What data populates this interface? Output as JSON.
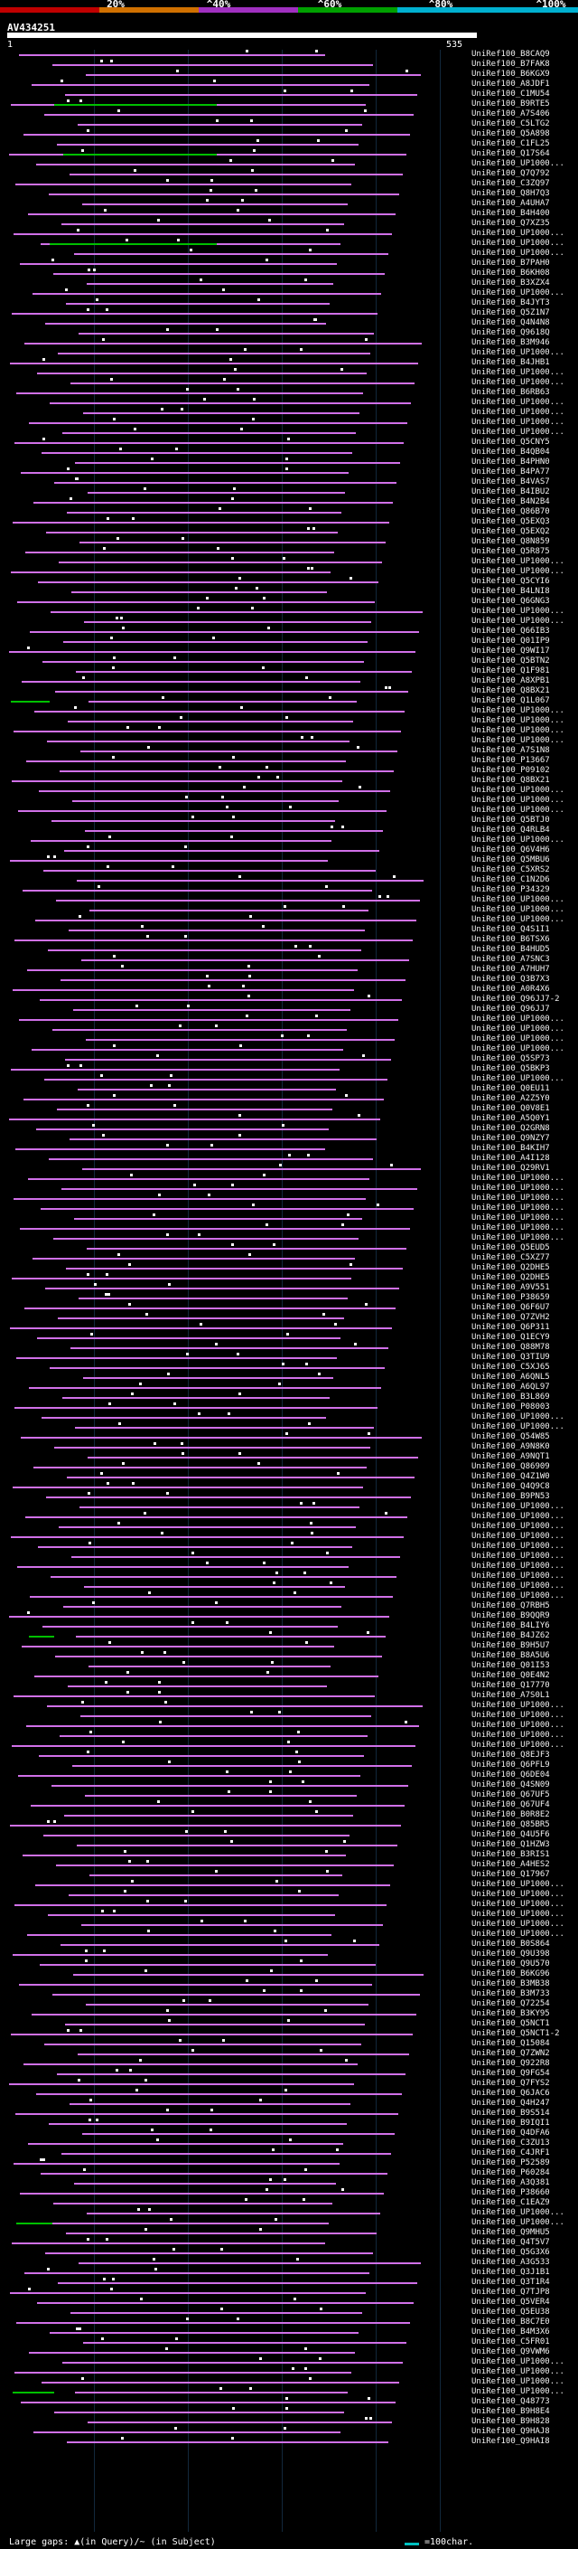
{
  "colors": {
    "background": "#000000",
    "hit": "#d070e8",
    "hit_alt": "#00c000",
    "gap_dot": "#ffffff",
    "scale_0": "#c00000",
    "scale_1": "#d07000",
    "scale_2": "#a030c0",
    "scale_3": "#00a000",
    "scale_4": "#00b0d0"
  },
  "scale": {
    "labels": [
      "20%",
      "^40%",
      "^60%",
      "^80%",
      "^100%"
    ]
  },
  "query": {
    "id": "AV434251",
    "start": "1",
    "end": "535"
  },
  "legend": {
    "text": "Large gaps: ▲(in Query)/~ (in Subject)",
    "scale_label": "=100char."
  },
  "hits": [
    "UniRef100_B8CAQ9",
    "UniRef100_B7FAK8",
    "UniRef100_B6KGX9",
    "UniRef100_A8JDF1",
    "UniRef100_C1MU54",
    "UniRef100_B9RTE5",
    "UniRef100_A7S406",
    "UniRef100_C5LTG2",
    "UniRef100_Q5A898",
    "UniRef100_C1FL25",
    "UniRef100_Q17S64",
    "UniRef100_UP1000...",
    "UniRef100_Q7Q792",
    "UniRef100_C3ZQ97",
    "UniRef100_Q8H7Q3",
    "UniRef100_A4UHA7",
    "UniRef100_B4H400",
    "UniRef100_Q7XZ35",
    "UniRef100_UP1000...",
    "UniRef100_UP1000...",
    "UniRef100_UP1000...",
    "UniRef100_B7PAH0",
    "UniRef100_B6KH08",
    "UniRef100_B3XZX4",
    "UniRef100_UP1000...",
    "UniRef100_B4JYT3",
    "UniRef100_Q5Z1N7",
    "UniRef100_Q4N4N8",
    "UniRef100_Q9618Q",
    "UniRef100_B3M946",
    "UniRef100_UP1000...",
    "UniRef100_B4JHB1",
    "UniRef100_UP1000...",
    "UniRef100_UP1000...",
    "UniRef100_B6RB63",
    "UniRef100_UP1000...",
    "UniRef100_UP1000...",
    "UniRef100_UP1000...",
    "UniRef100_UP1000...",
    "UniRef100_Q5CNY5",
    "UniRef100_B4QB04",
    "UniRef100_B4PHN0",
    "UniRef100_B4PA77",
    "UniRef100_B4VAS7",
    "UniRef100_B4IBU2",
    "UniRef100_B4N2B4",
    "UniRef100_Q86B70",
    "UniRef100_Q5EXQ3",
    "UniRef100_Q5EXQ2",
    "UniRef100_Q8N859",
    "UniRef100_Q5R875",
    "UniRef100_UP1000...",
    "UniRef100_UP1000...",
    "UniRef100_Q5CYI6",
    "UniRef100_B4LNI8",
    "UniRef100_Q6GNG3",
    "UniRef100_UP1000...",
    "UniRef100_UP1000...",
    "UniRef100_Q66IB3",
    "UniRef100_Q01IP9",
    "UniRef100_Q9WI17",
    "UniRef100_Q5BTN2",
    "UniRef100_Q1F981",
    "UniRef100_A8XPB1",
    "UniRef100_Q8BX21",
    "UniRef100_Q1L067",
    "UniRef100_UP1000...",
    "UniRef100_UP1000...",
    "UniRef100_UP1000...",
    "UniRef100_UP1000...",
    "UniRef100_A7S1N8",
    "UniRef100_P13667",
    "UniRef100_P09102",
    "UniRef100_Q8BX21",
    "UniRef100_UP1000...",
    "UniRef100_UP1000...",
    "UniRef100_UP1000...",
    "UniRef100_Q5BTJ0",
    "UniRef100_Q4RLB4",
    "UniRef100_UP1000...",
    "UniRef100_Q6V4H6",
    "UniRef100_Q5MBU6",
    "UniRef100_C5XRS2",
    "UniRef100_C1N2D6",
    "UniRef100_P34329",
    "UniRef100_UP1000...",
    "UniRef100_UP1000...",
    "UniRef100_UP1000...",
    "UniRef100_Q4S1I1",
    "UniRef100_B6TSX6",
    "UniRef100_B4HUD5",
    "UniRef100_A7SNC3",
    "UniRef100_A7HUH7",
    "UniRef100_Q3B7X3",
    "UniRef100_A0R4X6",
    "UniRef100_Q96JJ7-2",
    "UniRef100_Q96JJ7",
    "UniRef100_UP1000...",
    "UniRef100_UP1000...",
    "UniRef100_UP1000...",
    "UniRef100_UP1000...",
    "UniRef100_Q5SP73",
    "UniRef100_Q5BKP3",
    "UniRef100_UP1000...",
    "UniRef100_Q0EU11",
    "UniRef100_A2Z5Y0",
    "UniRef100_Q0V8E1",
    "UniRef100_A5Q0Y1",
    "UniRef100_Q2GRN8",
    "UniRef100_Q9NZY7",
    "UniRef100_B4KIH7",
    "UniRef100_A4I128",
    "UniRef100_Q29RV1",
    "UniRef100_UP1000...",
    "UniRef100_UP1000...",
    "UniRef100_UP1000...",
    "UniRef100_UP1000...",
    "UniRef100_UP1000...",
    "UniRef100_UP1000...",
    "UniRef100_UP1000...",
    "UniRef100_Q5EUD5",
    "UniRef100_C5XZ77",
    "UniRef100_Q2DHE5",
    "UniRef100_Q2DHE5",
    "UniRef100_A9V551",
    "UniRef100_P38659",
    "UniRef100_Q6F6U7",
    "UniRef100_Q7ZVH2",
    "UniRef100_Q6P311",
    "UniRef100_Q1ECY9",
    "UniRef100_Q88M78",
    "UniRef100_Q3TIU9",
    "UniRef100_C5XJ65",
    "UniRef100_A6QNL5",
    "UniRef100_A6QL97",
    "UniRef100_B3L869",
    "UniRef100_P08003",
    "UniRef100_UP1000...",
    "UniRef100_UP1000...",
    "UniRef100_Q54W85",
    "UniRef100_A9N8K0",
    "UniRef100_A9NQT1",
    "UniRef100_Q86909",
    "UniRef100_Q4Z1W0",
    "UniRef100_Q4Q9C8",
    "UniRef100_B9PN53",
    "UniRef100_UP1000...",
    "UniRef100_UP1000...",
    "UniRef100_UP1000...",
    "UniRef100_UP1000...",
    "UniRef100_UP1000...",
    "UniRef100_UP1000...",
    "UniRef100_UP1000...",
    "UniRef100_UP1000...",
    "UniRef100_UP1000...",
    "UniRef100_UP1000...",
    "UniRef100_Q7RBH5",
    "UniRef100_B9QQR9",
    "UniRef100_B4LIY6",
    "UniRef100_B4JZ62",
    "UniRef100_B9H5U7",
    "UniRef100_B8A5U6",
    "UniRef100_Q01I53",
    "UniRef100_Q0E4N2",
    "UniRef100_Q17770",
    "UniRef100_A7S0L1",
    "UniRef100_UP1000...",
    "UniRef100_UP1000...",
    "UniRef100_UP1000...",
    "UniRef100_UP1000...",
    "UniRef100_UP1000...",
    "UniRef100_Q8EJF3",
    "UniRef100_Q6PFL9",
    "UniRef100_Q6DE04",
    "UniRef100_Q4SN09",
    "UniRef100_Q67UF5",
    "UniRef100_Q67UF4",
    "UniRef100_B0R8E2",
    "UniRef100_Q85BR5",
    "UniRef100_Q4U5F6",
    "UniRef100_Q1HZW3",
    "UniRef100_B3RIS1",
    "UniRef100_A4HES2",
    "UniRef100_Q17967",
    "UniRef100_UP1000...",
    "UniRef100_UP1000...",
    "UniRef100_UP1000...",
    "UniRef100_UP1000...",
    "UniRef100_UP1000...",
    "UniRef100_UP1000...",
    "UniRef100_B0S864",
    "UniRef100_Q9U398",
    "UniRef100_Q9U570",
    "UniRef100_B6KG96",
    "UniRef100_B3MB38",
    "UniRef100_B3M733",
    "UniRef100_Q72254",
    "UniRef100_B3KY95",
    "UniRef100_Q5NCT1",
    "UniRef100_Q5NCT1-2",
    "UniRef100_Q15084",
    "UniRef100_Q7ZWN2",
    "UniRef100_Q922R8",
    "UniRef100_Q9FG54",
    "UniRef100_Q7FYS2",
    "UniRef100_Q6JAC6",
    "UniRef100_Q4H247",
    "UniRef100_B9S514",
    "UniRef100_B9IQI1",
    "UniRef100_Q4DFA6",
    "UniRef100_C3ZU13",
    "UniRef100_C4JRF1",
    "UniRef100_P52589",
    "UniRef100_P60284",
    "UniRef100_A3Q381",
    "UniRef100_P38660",
    "UniRef100_C1EAZ9",
    "UniRef100_UP1000...",
    "UniRef100_UP1000...",
    "UniRef100_Q9MHU5",
    "UniRef100_Q4T5V7",
    "UniRef100_Q5G3X6",
    "UniRef100_A3G533",
    "UniRef100_Q3J1B1",
    "UniRef100_Q3T1R4",
    "UniRef100_Q7TJP8",
    "UniRef100_Q5VER4",
    "UniRef100_Q5EU38",
    "UniRef100_B8C7E0",
    "UniRef100_B4M3X6",
    "UniRef100_C5FR01",
    "UniRef100_Q9VWM6",
    "UniRef100_UP1000...",
    "UniRef100_UP1000...",
    "UniRef100_UP1000...",
    "UniRef100_UP1000...",
    "UniRef100_Q48773",
    "UniRef100_B9H8E4",
    "UniRef100_B9H828",
    "UniRef100_Q9HAJ8",
    "UniRef100_Q9HAI8"
  ]
}
